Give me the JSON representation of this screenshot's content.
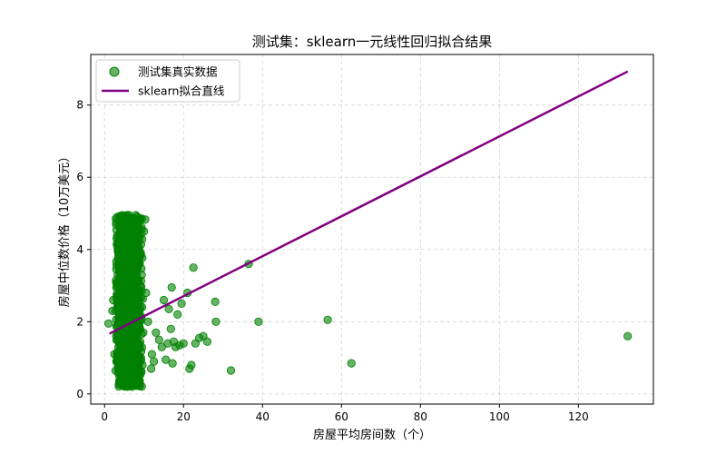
{
  "chart_data": {
    "type": "scatter",
    "title": "测试集：sklearn一元线性回归拟合结果",
    "xlabel": "房屋平均房间数（个）",
    "ylabel": "房屋中位数价格（10万美元）",
    "xlim": [
      -3.5,
      139
    ],
    "ylim": [
      -0.28,
      9.4
    ],
    "xticks": [
      0,
      20,
      40,
      60,
      80,
      100,
      120
    ],
    "yticks": [
      0,
      2,
      4,
      6,
      8
    ],
    "grid": true,
    "legend_position": "top-left",
    "colors": {
      "points": "#008000",
      "line": "#800080"
    },
    "series": [
      {
        "name": "测试集真实数据",
        "kind": "scatter",
        "cluster_points": [
          [
            4.5,
            1.2
          ],
          [
            5.1,
            0.8
          ],
          [
            5.8,
            2.4
          ],
          [
            6.2,
            3.1
          ],
          [
            4.9,
            1.6
          ],
          [
            5.5,
            4.7
          ],
          [
            6.8,
            2.0
          ],
          [
            3.9,
            0.9
          ],
          [
            7.2,
            1.4
          ],
          [
            5.3,
            3.6
          ],
          [
            4.2,
            2.8
          ],
          [
            6.5,
            0.6
          ],
          [
            5.0,
            4.2
          ],
          [
            7.8,
            1.1
          ],
          [
            3.5,
            1.9
          ],
          [
            6.1,
            4.9
          ],
          [
            4.8,
            0.5
          ],
          [
            5.7,
            2.2
          ],
          [
            8.1,
            3.3
          ],
          [
            4.4,
            1.7
          ],
          [
            6.9,
            2.6
          ],
          [
            5.2,
            0.4
          ],
          [
            3.8,
            3.9
          ],
          [
            7.5,
            4.4
          ],
          [
            5.9,
            1.3
          ],
          [
            4.6,
            2.5
          ],
          [
            6.3,
            0.9
          ],
          [
            5.4,
            3.0
          ],
          [
            8.5,
            2.1
          ],
          [
            4.1,
            4.6
          ],
          [
            2.8,
            2.3
          ],
          [
            9.2,
            1.0
          ],
          [
            5.6,
            1.8
          ],
          [
            6.7,
            3.7
          ],
          [
            4.3,
            0.7
          ],
          [
            7.0,
            4.0
          ],
          [
            5.0,
            2.9
          ],
          [
            3.2,
            1.5
          ],
          [
            6.4,
            2.7
          ],
          [
            8.8,
            3.8
          ],
          [
            5.3,
            4.8
          ],
          [
            4.0,
            3.4
          ],
          [
            7.3,
            0.3
          ],
          [
            6.0,
            1.6
          ],
          [
            4.7,
            4.1
          ],
          [
            5.8,
            0.2
          ],
          [
            9.5,
            2.4
          ],
          [
            3.6,
            2.0
          ],
          [
            6.6,
            1.2
          ],
          [
            5.1,
            3.2
          ],
          [
            7.9,
            4.95
          ],
          [
            4.5,
            4.95
          ],
          [
            6.2,
            4.95
          ],
          [
            5.6,
            4.95
          ],
          [
            8.3,
            4.9
          ],
          [
            3.9,
            4.7
          ],
          [
            7.1,
            2.9
          ],
          [
            2.5,
            1.1
          ],
          [
            10.0,
            4.5
          ],
          [
            9.8,
            1.7
          ],
          [
            5.9,
            3.5
          ],
          [
            6.8,
            4.3
          ],
          [
            4.9,
            2.3
          ],
          [
            7.6,
            0.7
          ],
          [
            3.3,
            3.1
          ],
          [
            6.1,
            0.5
          ],
          [
            5.4,
            1.4
          ],
          [
            8.0,
            2.2
          ],
          [
            4.2,
            4.4
          ],
          [
            6.5,
            3.9
          ],
          [
            3.0,
            0.9
          ],
          [
            9.0,
            3.0
          ],
          [
            5.7,
            4.6
          ],
          [
            4.6,
            3.8
          ],
          [
            7.4,
            1.9
          ],
          [
            6.3,
            4.7
          ],
          [
            2.2,
            2.6
          ],
          [
            8.6,
            0.8
          ],
          [
            5.2,
            1.0
          ],
          [
            10.5,
            2.8
          ]
        ],
        "outlier_points": [
          [
            1.0,
            1.95
          ],
          [
            2.0,
            2.3
          ],
          [
            10.3,
            4.83
          ],
          [
            11.0,
            2.0
          ],
          [
            11.8,
            0.7
          ],
          [
            12.0,
            1.1
          ],
          [
            12.5,
            0.9
          ],
          [
            13.0,
            1.7
          ],
          [
            13.8,
            1.5
          ],
          [
            14.5,
            1.3
          ],
          [
            15.0,
            2.6
          ],
          [
            15.5,
            0.95
          ],
          [
            16.0,
            1.4
          ],
          [
            16.3,
            2.35
          ],
          [
            16.8,
            1.8
          ],
          [
            17.0,
            2.95
          ],
          [
            17.2,
            0.85
          ],
          [
            17.5,
            1.45
          ],
          [
            18.0,
            1.3
          ],
          [
            18.5,
            2.2
          ],
          [
            19.0,
            1.35
          ],
          [
            19.5,
            2.5
          ],
          [
            20.0,
            1.4
          ],
          [
            21.0,
            2.8
          ],
          [
            21.5,
            0.7
          ],
          [
            22.0,
            0.8
          ],
          [
            22.5,
            3.5
          ],
          [
            23.0,
            1.4
          ],
          [
            24.0,
            1.55
          ],
          [
            25.0,
            1.6
          ],
          [
            26.0,
            1.45
          ],
          [
            28.0,
            2.55
          ],
          [
            28.2,
            2.0
          ],
          [
            32.0,
            0.65
          ],
          [
            36.5,
            3.6
          ],
          [
            39.0,
            2.0
          ],
          [
            56.5,
            2.05
          ],
          [
            62.5,
            0.85
          ],
          [
            132.5,
            1.6
          ]
        ]
      },
      {
        "name": "sklearn拟合直线",
        "kind": "line",
        "x": [
          1.25,
          132.5
        ],
        "y": [
          1.67,
          8.93
        ]
      }
    ]
  }
}
